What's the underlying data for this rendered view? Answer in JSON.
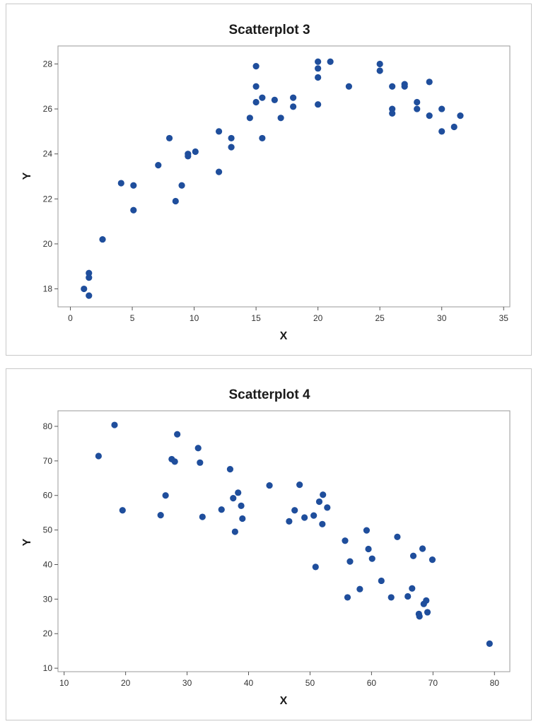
{
  "chart_data": [
    {
      "type": "scatter",
      "title": "Scatterplot 3",
      "xlabel": "X",
      "ylabel": "Y",
      "xlim": [
        -1,
        35.5
      ],
      "ylim": [
        17.2,
        28.8
      ],
      "xticks": [
        0,
        5,
        10,
        15,
        20,
        25,
        30,
        35
      ],
      "yticks": [
        18,
        20,
        22,
        24,
        26,
        28
      ],
      "grid": false,
      "marker_color": "#1f4e9c",
      "points": [
        {
          "x": 1.1,
          "y": 18.0
        },
        {
          "x": 1.5,
          "y": 18.7
        },
        {
          "x": 1.5,
          "y": 18.5
        },
        {
          "x": 1.5,
          "y": 17.7
        },
        {
          "x": 2.6,
          "y": 20.2
        },
        {
          "x": 4.1,
          "y": 22.7
        },
        {
          "x": 5.1,
          "y": 22.6
        },
        {
          "x": 5.1,
          "y": 21.5
        },
        {
          "x": 7.1,
          "y": 23.5
        },
        {
          "x": 8.0,
          "y": 24.7
        },
        {
          "x": 8.5,
          "y": 21.9
        },
        {
          "x": 9.0,
          "y": 22.6
        },
        {
          "x": 9.5,
          "y": 24.0
        },
        {
          "x": 9.5,
          "y": 23.9
        },
        {
          "x": 10.1,
          "y": 24.1
        },
        {
          "x": 12.0,
          "y": 25.0
        },
        {
          "x": 12.0,
          "y": 23.2
        },
        {
          "x": 13.0,
          "y": 24.7
        },
        {
          "x": 13.0,
          "y": 24.3
        },
        {
          "x": 14.5,
          "y": 25.6
        },
        {
          "x": 15.0,
          "y": 27.9
        },
        {
          "x": 15.0,
          "y": 27.0
        },
        {
          "x": 15.0,
          "y": 26.3
        },
        {
          "x": 15.5,
          "y": 26.5
        },
        {
          "x": 15.5,
          "y": 24.7
        },
        {
          "x": 16.5,
          "y": 26.4
        },
        {
          "x": 17.0,
          "y": 25.6
        },
        {
          "x": 18.0,
          "y": 26.5
        },
        {
          "x": 18.0,
          "y": 26.1
        },
        {
          "x": 20.0,
          "y": 28.1
        },
        {
          "x": 20.0,
          "y": 27.8
        },
        {
          "x": 20.0,
          "y": 27.4
        },
        {
          "x": 20.0,
          "y": 26.2
        },
        {
          "x": 21.0,
          "y": 28.1
        },
        {
          "x": 22.5,
          "y": 27.0
        },
        {
          "x": 25.0,
          "y": 28.0
        },
        {
          "x": 25.0,
          "y": 27.7
        },
        {
          "x": 26.0,
          "y": 27.0
        },
        {
          "x": 26.0,
          "y": 26.0
        },
        {
          "x": 26.0,
          "y": 25.8
        },
        {
          "x": 27.0,
          "y": 27.1
        },
        {
          "x": 27.0,
          "y": 27.0
        },
        {
          "x": 28.0,
          "y": 26.3
        },
        {
          "x": 28.0,
          "y": 26.0
        },
        {
          "x": 29.0,
          "y": 27.2
        },
        {
          "x": 29.0,
          "y": 25.7
        },
        {
          "x": 30.0,
          "y": 26.0
        },
        {
          "x": 30.0,
          "y": 25.0
        },
        {
          "x": 31.0,
          "y": 25.2
        },
        {
          "x": 31.5,
          "y": 25.7
        }
      ]
    },
    {
      "type": "scatter",
      "title": "Scatterplot 4",
      "xlabel": "X",
      "ylabel": "Y",
      "xlim": [
        9,
        82.5
      ],
      "ylim": [
        9,
        84.5
      ],
      "xticks": [
        10,
        20,
        30,
        40,
        50,
        60,
        70,
        80
      ],
      "yticks": [
        10,
        20,
        30,
        40,
        50,
        60,
        70,
        80
      ],
      "grid": false,
      "marker_color": "#1f4e9c",
      "points": [
        {
          "x": 15.6,
          "y": 71.4
        },
        {
          "x": 18.2,
          "y": 80.4
        },
        {
          "x": 19.5,
          "y": 55.7
        },
        {
          "x": 25.7,
          "y": 54.3
        },
        {
          "x": 26.5,
          "y": 60.0
        },
        {
          "x": 27.5,
          "y": 70.5
        },
        {
          "x": 28.0,
          "y": 69.8
        },
        {
          "x": 28.4,
          "y": 77.7
        },
        {
          "x": 31.8,
          "y": 73.7
        },
        {
          "x": 32.1,
          "y": 69.5
        },
        {
          "x": 32.5,
          "y": 53.8
        },
        {
          "x": 35.6,
          "y": 55.9
        },
        {
          "x": 37.0,
          "y": 67.6
        },
        {
          "x": 37.5,
          "y": 59.2
        },
        {
          "x": 37.8,
          "y": 49.5
        },
        {
          "x": 38.3,
          "y": 60.8
        },
        {
          "x": 38.8,
          "y": 57.0
        },
        {
          "x": 39.0,
          "y": 53.3
        },
        {
          "x": 43.4,
          "y": 62.9
        },
        {
          "x": 46.6,
          "y": 52.5
        },
        {
          "x": 47.5,
          "y": 55.7
        },
        {
          "x": 48.3,
          "y": 63.1
        },
        {
          "x": 49.1,
          "y": 53.6
        },
        {
          "x": 50.6,
          "y": 54.2
        },
        {
          "x": 50.9,
          "y": 39.3
        },
        {
          "x": 51.5,
          "y": 58.2
        },
        {
          "x": 52.0,
          "y": 51.7
        },
        {
          "x": 52.1,
          "y": 60.2
        },
        {
          "x": 52.8,
          "y": 56.5
        },
        {
          "x": 55.7,
          "y": 46.9
        },
        {
          "x": 56.1,
          "y": 30.5
        },
        {
          "x": 56.5,
          "y": 40.9
        },
        {
          "x": 58.1,
          "y": 32.9
        },
        {
          "x": 59.2,
          "y": 49.9
        },
        {
          "x": 59.5,
          "y": 44.5
        },
        {
          "x": 60.1,
          "y": 41.7
        },
        {
          "x": 61.6,
          "y": 35.3
        },
        {
          "x": 63.2,
          "y": 30.5
        },
        {
          "x": 64.2,
          "y": 48.0
        },
        {
          "x": 65.9,
          "y": 30.8
        },
        {
          "x": 66.6,
          "y": 33.1
        },
        {
          "x": 66.8,
          "y": 42.5
        },
        {
          "x": 67.7,
          "y": 25.7
        },
        {
          "x": 67.8,
          "y": 25.0
        },
        {
          "x": 68.3,
          "y": 44.6
        },
        {
          "x": 68.5,
          "y": 28.6
        },
        {
          "x": 68.9,
          "y": 29.6
        },
        {
          "x": 69.1,
          "y": 26.2
        },
        {
          "x": 69.9,
          "y": 41.4
        },
        {
          "x": 79.2,
          "y": 17.1
        }
      ]
    }
  ]
}
